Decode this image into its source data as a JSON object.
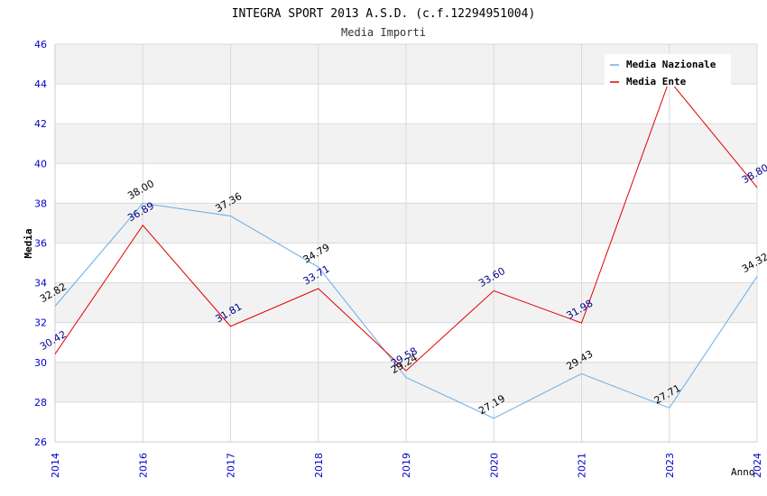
{
  "chart_data": {
    "type": "line",
    "title": "INTEGRA SPORT 2013 A.S.D. (c.f.12294951004)",
    "subtitle": "Media Importi",
    "xlabel": "Anno",
    "ylabel": "Media",
    "categories": [
      "2014",
      "2016",
      "2017",
      "2018",
      "2019",
      "2020",
      "2021",
      "2023",
      "2024"
    ],
    "ylim": [
      26,
      46
    ],
    "yticks": [
      "26",
      "28",
      "30",
      "32",
      "34",
      "36",
      "38",
      "40",
      "42",
      "44",
      "46"
    ],
    "grid": true,
    "legend_position": "top-right",
    "series": [
      {
        "name": "Media Nazionale",
        "color": "#6aaee6",
        "label_color": "#000000",
        "values": [
          32.82,
          38.0,
          37.36,
          34.79,
          29.24,
          27.19,
          29.43,
          27.71,
          34.32
        ],
        "labels": [
          "32.82",
          "38.00",
          "37.36",
          "34.79",
          "29.24",
          "27.19",
          "29.43",
          "27.71",
          "34.32"
        ]
      },
      {
        "name": "Media Ente",
        "color": "#e00000",
        "label_color": "#00008b",
        "values": [
          30.42,
          36.89,
          31.81,
          33.71,
          29.58,
          33.6,
          31.98,
          44.18,
          38.8
        ],
        "labels": [
          "30.42",
          "36.89",
          "31.81",
          "33.71",
          "29.58",
          "33.60",
          "31.98",
          "",
          "38.80"
        ]
      }
    ]
  },
  "colors": {
    "band_dark": "#f2f2f2",
    "band_light": "#ffffff",
    "grid": "#d9d9d9",
    "axis_tick_text": "#0000cc",
    "title_text": "#000000",
    "subtitle_text": "#333333"
  }
}
